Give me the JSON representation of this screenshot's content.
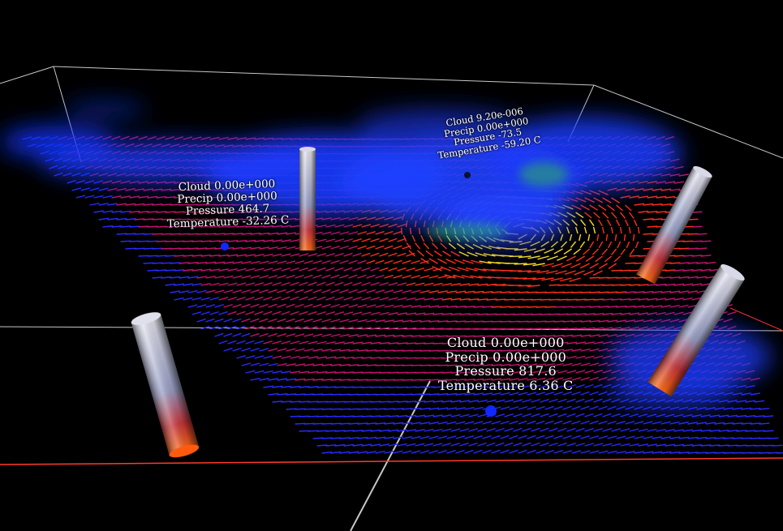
{
  "scene": {
    "background": "#000000",
    "box_color": "#c8c8c8",
    "ground_edge_color": "#ff3a2a",
    "cloud_color": "#1a3cff",
    "vector_colors": {
      "low": "#2a2aff",
      "mid": "#c4126e",
      "high": "#ff2d1a",
      "peak": "#ffe21a"
    }
  },
  "probes": [
    {
      "cloud": "Cloud 0.00e+000",
      "precip": "Precip 0.00e+000",
      "pressure": "Pressure 464.7",
      "temperature": "Temperature -32.26 C"
    },
    {
      "cloud": "Cloud 9.20e-006",
      "precip": "Precip 0.00e+000",
      "pressure": "Pressure -73.5",
      "temperature": "Temperature -59.20 C"
    },
    {
      "cloud": "Cloud 0.00e+000",
      "precip": "Precip 0.00e+000",
      "pressure": "Pressure 817.6",
      "temperature": "Temperature 6.36 C"
    }
  ]
}
